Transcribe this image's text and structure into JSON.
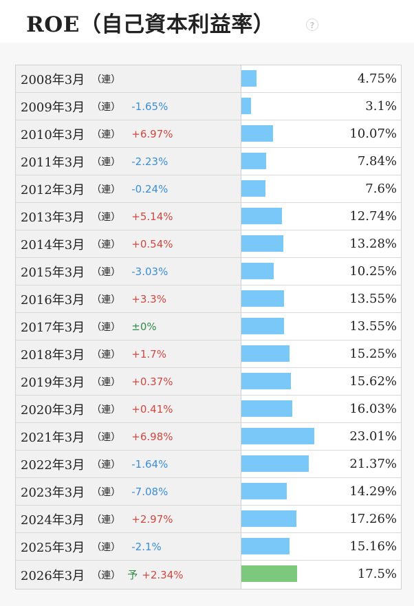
{
  "header": {
    "title": "ROE（自己資本利益率）",
    "help_icon_glyph": "?"
  },
  "colors": {
    "bar": "#7ac8f8",
    "forecast_bar": "#7cc87c",
    "up": "#d0473f",
    "down": "#3a8ed8",
    "flat": "#2f8a4a"
  },
  "rows": [
    {
      "year": "2008年3月",
      "kind": "（連）",
      "change": "",
      "value_text": "4.75%",
      "value": 4.75
    },
    {
      "year": "2009年3月",
      "kind": "（連）",
      "change": "-1.65%",
      "value_text": "3.1%",
      "value": 3.1
    },
    {
      "year": "2010年3月",
      "kind": "（連）",
      "change": "+6.97%",
      "value_text": "10.07%",
      "value": 10.07
    },
    {
      "year": "2011年3月",
      "kind": "（連）",
      "change": "-2.23%",
      "value_text": "7.84%",
      "value": 7.84
    },
    {
      "year": "2012年3月",
      "kind": "（連）",
      "change": "-0.24%",
      "value_text": "7.6%",
      "value": 7.6
    },
    {
      "year": "2013年3月",
      "kind": "（連）",
      "change": "+5.14%",
      "value_text": "12.74%",
      "value": 12.74
    },
    {
      "year": "2014年3月",
      "kind": "（連）",
      "change": "+0.54%",
      "value_text": "13.28%",
      "value": 13.28
    },
    {
      "year": "2015年3月",
      "kind": "（連）",
      "change": "-3.03%",
      "value_text": "10.25%",
      "value": 10.25
    },
    {
      "year": "2016年3月",
      "kind": "（連）",
      "change": "+3.3%",
      "value_text": "13.55%",
      "value": 13.55
    },
    {
      "year": "2017年3月",
      "kind": "（連）",
      "change": "±0%",
      "value_text": "13.55%",
      "value": 13.55
    },
    {
      "year": "2018年3月",
      "kind": "（連）",
      "change": "+1.7%",
      "value_text": "15.25%",
      "value": 15.25
    },
    {
      "year": "2019年3月",
      "kind": "（連）",
      "change": "+0.37%",
      "value_text": "15.62%",
      "value": 15.62
    },
    {
      "year": "2020年3月",
      "kind": "（連）",
      "change": "+0.41%",
      "value_text": "16.03%",
      "value": 16.03
    },
    {
      "year": "2021年3月",
      "kind": "（連）",
      "change": "+6.98%",
      "value_text": "23.01%",
      "value": 23.01
    },
    {
      "year": "2022年3月",
      "kind": "（連）",
      "change": "-1.64%",
      "value_text": "21.37%",
      "value": 21.37
    },
    {
      "year": "2023年3月",
      "kind": "（連）",
      "change": "-7.08%",
      "value_text": "14.29%",
      "value": 14.29
    },
    {
      "year": "2024年3月",
      "kind": "（連）",
      "change": "+2.97%",
      "value_text": "17.26%",
      "value": 17.26
    },
    {
      "year": "2025年3月",
      "kind": "（連）",
      "change": "-2.1%",
      "value_text": "15.16%",
      "value": 15.16
    },
    {
      "year": "2026年3月",
      "kind": "（連）",
      "forecast": "予",
      "change": "+2.34%",
      "value_text": "17.5%",
      "value": 17.5
    }
  ],
  "bar_scale_max": 23.01
}
